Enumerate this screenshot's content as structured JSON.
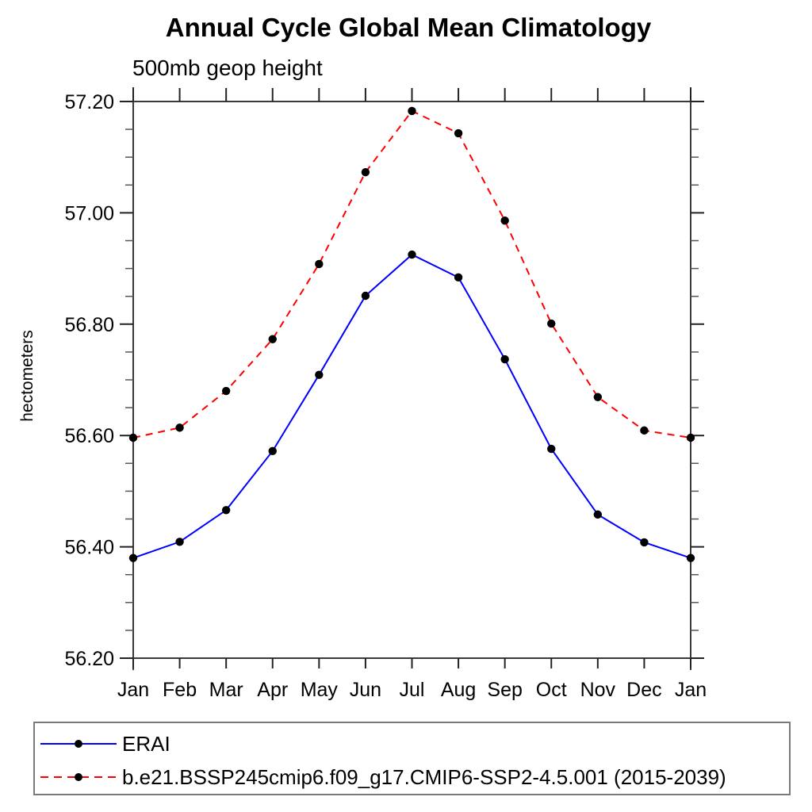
{
  "title": "Annual Cycle Global Mean Climatology",
  "subtitle": "500mb geop height",
  "ylabel": "hectometers",
  "legend": {
    "entries": [
      {
        "label": "ERAI",
        "color": "#0000ff",
        "style": "solid"
      },
      {
        "label": "b.e21.BSSP245cmip6.f09_g17.CMIP6-SSP2-4.5.001 (2015-2039)",
        "color": "#ff0000",
        "style": "dashed"
      }
    ]
  },
  "chart_data": {
    "type": "line",
    "title": "Annual Cycle Global Mean Climatology",
    "subtitle": "500mb geop height",
    "ylabel": "hectometers",
    "categories": [
      "Jan",
      "Feb",
      "Mar",
      "Apr",
      "May",
      "Jun",
      "Jul",
      "Aug",
      "Sep",
      "Oct",
      "Nov",
      "Dec",
      "Jan"
    ],
    "series": [
      {
        "name": "ERAI",
        "color": "#0000ff",
        "style": "solid",
        "marker": "filled-circle",
        "marker_color": "#000000",
        "values": [
          56.38,
          56.409,
          56.466,
          56.572,
          56.709,
          56.851,
          56.925,
          56.884,
          56.737,
          56.576,
          56.458,
          56.408,
          56.38
        ]
      },
      {
        "name": "b.e21.BSSP245cmip6.f09_g17.CMIP6-SSP2-4.5.001 (2015-2039)",
        "color": "#ff0000",
        "style": "dashed",
        "marker": "filled-circle",
        "marker_color": "#000000",
        "values": [
          56.596,
          56.614,
          56.68,
          56.773,
          56.908,
          57.073,
          57.183,
          57.143,
          56.986,
          56.801,
          56.669,
          56.609,
          56.596
        ]
      }
    ],
    "ylim": [
      56.2,
      57.2
    ],
    "yticks": [
      56.2,
      56.4,
      56.6,
      56.8,
      57.0,
      57.2
    ],
    "ytick_labels": [
      "56.20",
      "56.40",
      "56.60",
      "56.80",
      "57.00",
      "57.20"
    ],
    "ytick_minor_step": 0.05,
    "grid": false,
    "legend_position": "bottom-left-box",
    "axis_color": "#3a3a3a"
  }
}
